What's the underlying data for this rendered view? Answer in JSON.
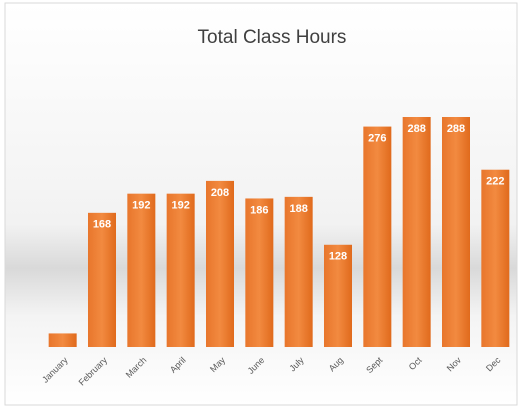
{
  "chart_data": {
    "type": "bar",
    "title": "Total Class Hours",
    "categories": [
      "January",
      "February",
      "March",
      "April",
      "May",
      "June",
      "July",
      "Aug",
      "Sept",
      "Oct",
      "Nov",
      "Dec"
    ],
    "values": [
      17,
      168,
      192,
      192,
      208,
      186,
      188,
      128,
      276,
      288,
      288,
      222
    ],
    "value_labels": [
      null,
      "168",
      "192",
      "192",
      "208",
      "186",
      "188",
      "128",
      "276",
      "288",
      "288",
      "222"
    ],
    "color": "#ed7d31"
  }
}
